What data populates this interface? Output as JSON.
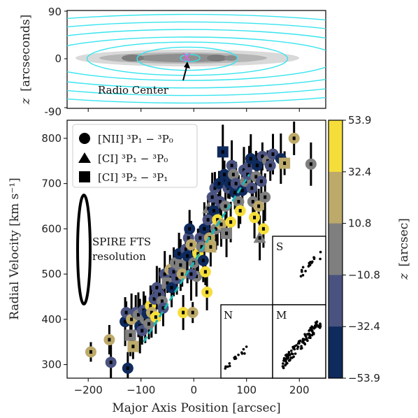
{
  "chart_data": [
    {
      "type": "contour",
      "panel": "top",
      "ylabel_italic": "z",
      "ylabel": "[arcseconds]",
      "yticks": [
        "90",
        "0",
        "-90"
      ],
      "ylim": [
        -90,
        90
      ],
      "xlim": [
        -250,
        250
      ],
      "annotation": "Radio Center",
      "contour_color": "#37e4ee",
      "marker_color": "#d06ad8"
    },
    {
      "type": "scatter",
      "panel": "main",
      "xlabel": "Major Axis Position [arcsec]",
      "ylabel": "Radial Velocity [km s⁻¹]",
      "xlim": [
        -240,
        250
      ],
      "ylim": [
        270,
        840
      ],
      "xticks": [
        -200,
        -100,
        0,
        100,
        200
      ],
      "yticks": [
        300,
        400,
        500,
        600,
        700,
        800
      ],
      "legend": {
        "placement": "top-left",
        "items": [
          {
            "marker": "circle",
            "label": "[NII] ³P₁ − ³P₀"
          },
          {
            "marker": "triangle",
            "label": "[CI] ³P₁ − ³P₀"
          },
          {
            "marker": "square",
            "label": "[CI] ³P₂ − ³P₁"
          }
        ]
      },
      "beam_label": "SPIRE FTS\nresolution",
      "fit_line": {
        "x": [
          -95,
          105
        ],
        "y": [
          350,
          720
        ],
        "color": "#1fb5b5"
      },
      "colorbar": {
        "label_italic": "z",
        "label": "[arcsec]",
        "ticks": [
          "53.9",
          "32.4",
          "10.8",
          "−10.8",
          "−32.4",
          "−53.9"
        ],
        "colors": [
          "#f5de3a",
          "#bdaa6b",
          "#7f7f7f",
          "#4a5380",
          "#0f2a5c"
        ]
      },
      "points": [
        {
          "x": -195,
          "y": 328,
          "c": 1,
          "m": "c"
        },
        {
          "x": -160,
          "y": 355,
          "c": 1,
          "m": "c"
        },
        {
          "x": -157,
          "y": 305,
          "c": 3,
          "m": "c"
        },
        {
          "x": -130,
          "y": 395,
          "c": 4,
          "m": "c"
        },
        {
          "x": -128,
          "y": 415,
          "c": 3,
          "m": "c"
        },
        {
          "x": -125,
          "y": 292,
          "c": 4,
          "m": "c"
        },
        {
          "x": -120,
          "y": 365,
          "c": 2,
          "m": "s"
        },
        {
          "x": -118,
          "y": 400,
          "c": 1,
          "m": "c"
        },
        {
          "x": -115,
          "y": 340,
          "c": 1,
          "m": "s"
        },
        {
          "x": -110,
          "y": 415,
          "c": 3,
          "m": "c"
        },
        {
          "x": -105,
          "y": 410,
          "c": 2,
          "m": "c"
        },
        {
          "x": -102,
          "y": 385,
          "c": 4,
          "m": "c"
        },
        {
          "x": -98,
          "y": 375,
          "c": 3,
          "m": "c"
        },
        {
          "x": -95,
          "y": 420,
          "c": 3,
          "m": "c"
        },
        {
          "x": -92,
          "y": 400,
          "c": 2,
          "m": "c"
        },
        {
          "x": -88,
          "y": 412,
          "c": 4,
          "m": "c"
        },
        {
          "x": -85,
          "y": 390,
          "c": 2,
          "m": "c"
        },
        {
          "x": -82,
          "y": 430,
          "c": 0,
          "m": "c"
        },
        {
          "x": -80,
          "y": 415,
          "c": 1,
          "m": "c"
        },
        {
          "x": -75,
          "y": 445,
          "c": 3,
          "m": "c"
        },
        {
          "x": -72,
          "y": 405,
          "c": 0,
          "m": "c"
        },
        {
          "x": -70,
          "y": 470,
          "c": 3,
          "m": "c"
        },
        {
          "x": -65,
          "y": 455,
          "c": 3,
          "m": "c"
        },
        {
          "x": -60,
          "y": 440,
          "c": 2,
          "m": "c"
        },
        {
          "x": -58,
          "y": 425,
          "c": 3,
          "m": "c"
        },
        {
          "x": -55,
          "y": 500,
          "c": 3,
          "m": "c"
        },
        {
          "x": -50,
          "y": 480,
          "c": 2,
          "m": "s"
        },
        {
          "x": -45,
          "y": 510,
          "c": 1,
          "m": "c"
        },
        {
          "x": -42,
          "y": 470,
          "c": 4,
          "m": "c"
        },
        {
          "x": -38,
          "y": 505,
          "c": 3,
          "m": "c"
        },
        {
          "x": -35,
          "y": 525,
          "c": 2,
          "m": "c"
        },
        {
          "x": -32,
          "y": 490,
          "c": 3,
          "m": "c"
        },
        {
          "x": -28,
          "y": 545,
          "c": 4,
          "m": "c"
        },
        {
          "x": -25,
          "y": 520,
          "c": 2,
          "m": "s"
        },
        {
          "x": -22,
          "y": 500,
          "c": 1,
          "m": "c"
        },
        {
          "x": -20,
          "y": 415,
          "c": 0,
          "m": "c"
        },
        {
          "x": -15,
          "y": 555,
          "c": 3,
          "m": "c"
        },
        {
          "x": -12,
          "y": 540,
          "c": 4,
          "m": "c"
        },
        {
          "x": -10,
          "y": 580,
          "c": 3,
          "m": "c"
        },
        {
          "x": -8,
          "y": 600,
          "c": 4,
          "m": "c"
        },
        {
          "x": -5,
          "y": 565,
          "c": 1,
          "m": "c"
        },
        {
          "x": -2,
          "y": 415,
          "c": 1,
          "m": "c"
        },
        {
          "x": 0,
          "y": 525,
          "c": 2,
          "m": "c"
        },
        {
          "x": 5,
          "y": 495,
          "c": 2,
          "m": "c"
        },
        {
          "x": 8,
          "y": 545,
          "c": 0,
          "m": "c"
        },
        {
          "x": 12,
          "y": 580,
          "c": 3,
          "m": "c"
        },
        {
          "x": 15,
          "y": 560,
          "c": 2,
          "m": "c"
        },
        {
          "x": 18,
          "y": 530,
          "c": 4,
          "m": "c"
        },
        {
          "x": 20,
          "y": 600,
          "c": 4,
          "m": "c"
        },
        {
          "x": 22,
          "y": 505,
          "c": 0,
          "m": "c"
        },
        {
          "x": 25,
          "y": 460,
          "c": 0,
          "m": "c"
        },
        {
          "x": 27,
          "y": 620,
          "c": 3,
          "m": "c"
        },
        {
          "x": 28,
          "y": 645,
          "c": 2,
          "m": "t"
        },
        {
          "x": 30,
          "y": 580,
          "c": 1,
          "m": "c"
        },
        {
          "x": 32,
          "y": 560,
          "c": 1,
          "m": "s"
        },
        {
          "x": 35,
          "y": 670,
          "c": 3,
          "m": "c"
        },
        {
          "x": 38,
          "y": 640,
          "c": 4,
          "m": "c"
        },
        {
          "x": 40,
          "y": 690,
          "c": 3,
          "m": "c"
        },
        {
          "x": 42,
          "y": 600,
          "c": 2,
          "m": "c"
        },
        {
          "x": 45,
          "y": 620,
          "c": 0,
          "m": "c"
        },
        {
          "x": 48,
          "y": 700,
          "c": 4,
          "m": "c"
        },
        {
          "x": 50,
          "y": 660,
          "c": 3,
          "m": "c"
        },
        {
          "x": 52,
          "y": 610,
          "c": 1,
          "m": "c"
        },
        {
          "x": 55,
          "y": 770,
          "c": 4,
          "m": "s"
        },
        {
          "x": 58,
          "y": 720,
          "c": 4,
          "m": "c"
        },
        {
          "x": 60,
          "y": 650,
          "c": 2,
          "m": "c"
        },
        {
          "x": 62,
          "y": 590,
          "c": 2,
          "m": "s"
        },
        {
          "x": 65,
          "y": 690,
          "c": 3,
          "m": "c"
        },
        {
          "x": 68,
          "y": 700,
          "c": 4,
          "m": "c"
        },
        {
          "x": 70,
          "y": 615,
          "c": 0,
          "m": "c"
        },
        {
          "x": 72,
          "y": 740,
          "c": 3,
          "m": "c"
        },
        {
          "x": 75,
          "y": 720,
          "c": 2,
          "m": "c"
        },
        {
          "x": 78,
          "y": 680,
          "c": 4,
          "m": "c"
        },
        {
          "x": 80,
          "y": 700,
          "c": 3,
          "m": "c"
        },
        {
          "x": 85,
          "y": 660,
          "c": 2,
          "m": "c"
        },
        {
          "x": 88,
          "y": 640,
          "c": 0,
          "m": "c"
        },
        {
          "x": 92,
          "y": 685,
          "c": 4,
          "m": "c"
        },
        {
          "x": 95,
          "y": 730,
          "c": 3,
          "m": "c"
        },
        {
          "x": 98,
          "y": 705,
          "c": 2,
          "m": "c"
        },
        {
          "x": 102,
          "y": 720,
          "c": 3,
          "m": "c"
        },
        {
          "x": 105,
          "y": 740,
          "c": 3,
          "m": "c"
        },
        {
          "x": 108,
          "y": 755,
          "c": 4,
          "m": "c"
        },
        {
          "x": 110,
          "y": 690,
          "c": 3,
          "m": "c"
        },
        {
          "x": 112,
          "y": 660,
          "c": 2,
          "m": "c"
        },
        {
          "x": 115,
          "y": 625,
          "c": 0,
          "m": "c"
        },
        {
          "x": 118,
          "y": 715,
          "c": 2,
          "m": "c"
        },
        {
          "x": 120,
          "y": 740,
          "c": 4,
          "m": "c"
        },
        {
          "x": 123,
          "y": 650,
          "c": 1,
          "m": "c"
        },
        {
          "x": 125,
          "y": 580,
          "c": 2,
          "m": "t"
        },
        {
          "x": 128,
          "y": 705,
          "c": 3,
          "m": "c"
        },
        {
          "x": 130,
          "y": 760,
          "c": 3,
          "m": "c"
        },
        {
          "x": 132,
          "y": 600,
          "c": 0,
          "m": "c"
        },
        {
          "x": 135,
          "y": 670,
          "c": 2,
          "m": "c"
        },
        {
          "x": 140,
          "y": 750,
          "c": 2,
          "m": "c"
        },
        {
          "x": 145,
          "y": 740,
          "c": 3,
          "m": "c"
        },
        {
          "x": 150,
          "y": 765,
          "c": 3,
          "m": "c"
        },
        {
          "x": 165,
          "y": 755,
          "c": 4,
          "m": "c"
        },
        {
          "x": 172,
          "y": 745,
          "c": 1,
          "m": "s"
        },
        {
          "x": 190,
          "y": 800,
          "c": 1,
          "m": "c"
        },
        {
          "x": 222,
          "y": 743,
          "c": 2,
          "m": "c"
        },
        {
          "x": -5,
          "y": 500,
          "c": 3,
          "m": "c"
        }
      ],
      "insets": [
        {
          "label": "S",
          "n": 18
        },
        {
          "label": "N",
          "n": 16
        },
        {
          "label": "M",
          "n": 110
        }
      ]
    }
  ]
}
